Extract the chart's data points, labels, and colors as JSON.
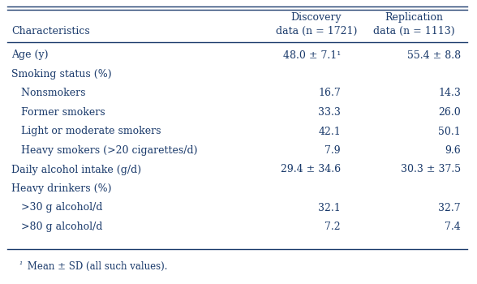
{
  "rows": [
    {
      "label": "Age (y)",
      "indent": 0,
      "disc": "48.0 ± 7.1¹",
      "repl": "55.4 ± 8.8",
      "header_only": false
    },
    {
      "label": "Smoking status (%)",
      "indent": 0,
      "disc": "",
      "repl": "",
      "header_only": false
    },
    {
      "label": "   Nonsmokers",
      "indent": 0,
      "disc": "16.7",
      "repl": "14.3",
      "header_only": false
    },
    {
      "label": "   Former smokers",
      "indent": 0,
      "disc": "33.3",
      "repl": "26.0",
      "header_only": false
    },
    {
      "label": "   Light or moderate smokers",
      "indent": 0,
      "disc": "42.1",
      "repl": "50.1",
      "header_only": false
    },
    {
      "label": "   Heavy smokers (>20 cigarettes/d)",
      "indent": 0,
      "disc": "7.9",
      "repl": "9.6",
      "header_only": false
    },
    {
      "label": "Daily alcohol intake (g/d)",
      "indent": 0,
      "disc": "29.4 ± 34.6",
      "repl": "30.3 ± 37.5",
      "header_only": false
    },
    {
      "label": "Heavy drinkers (%)",
      "indent": 0,
      "disc": "",
      "repl": "",
      "header_only": false
    },
    {
      "label": "   >30 g alcohol/d",
      "indent": 0,
      "disc": "32.1",
      "repl": "32.7",
      "header_only": false
    },
    {
      "label": "   >80 g alcohol/d",
      "indent": 0,
      "disc": "7.2",
      "repl": "7.4",
      "header_only": false
    }
  ],
  "header_char": "Characteristics",
  "header_disc": "Discovery\ndata (n = 1721)",
  "header_repl": "Replication\ndata (n = 1113)",
  "footnote_super": "¹",
  "footnote_text": " Mean ± SD (all such values).",
  "text_color": "#1a3a6b",
  "bg_color": "#ffffff",
  "font_size": 9.0,
  "footnote_font_size": 8.5,
  "line_color": "#1a3a6b",
  "line_lw": 1.0
}
